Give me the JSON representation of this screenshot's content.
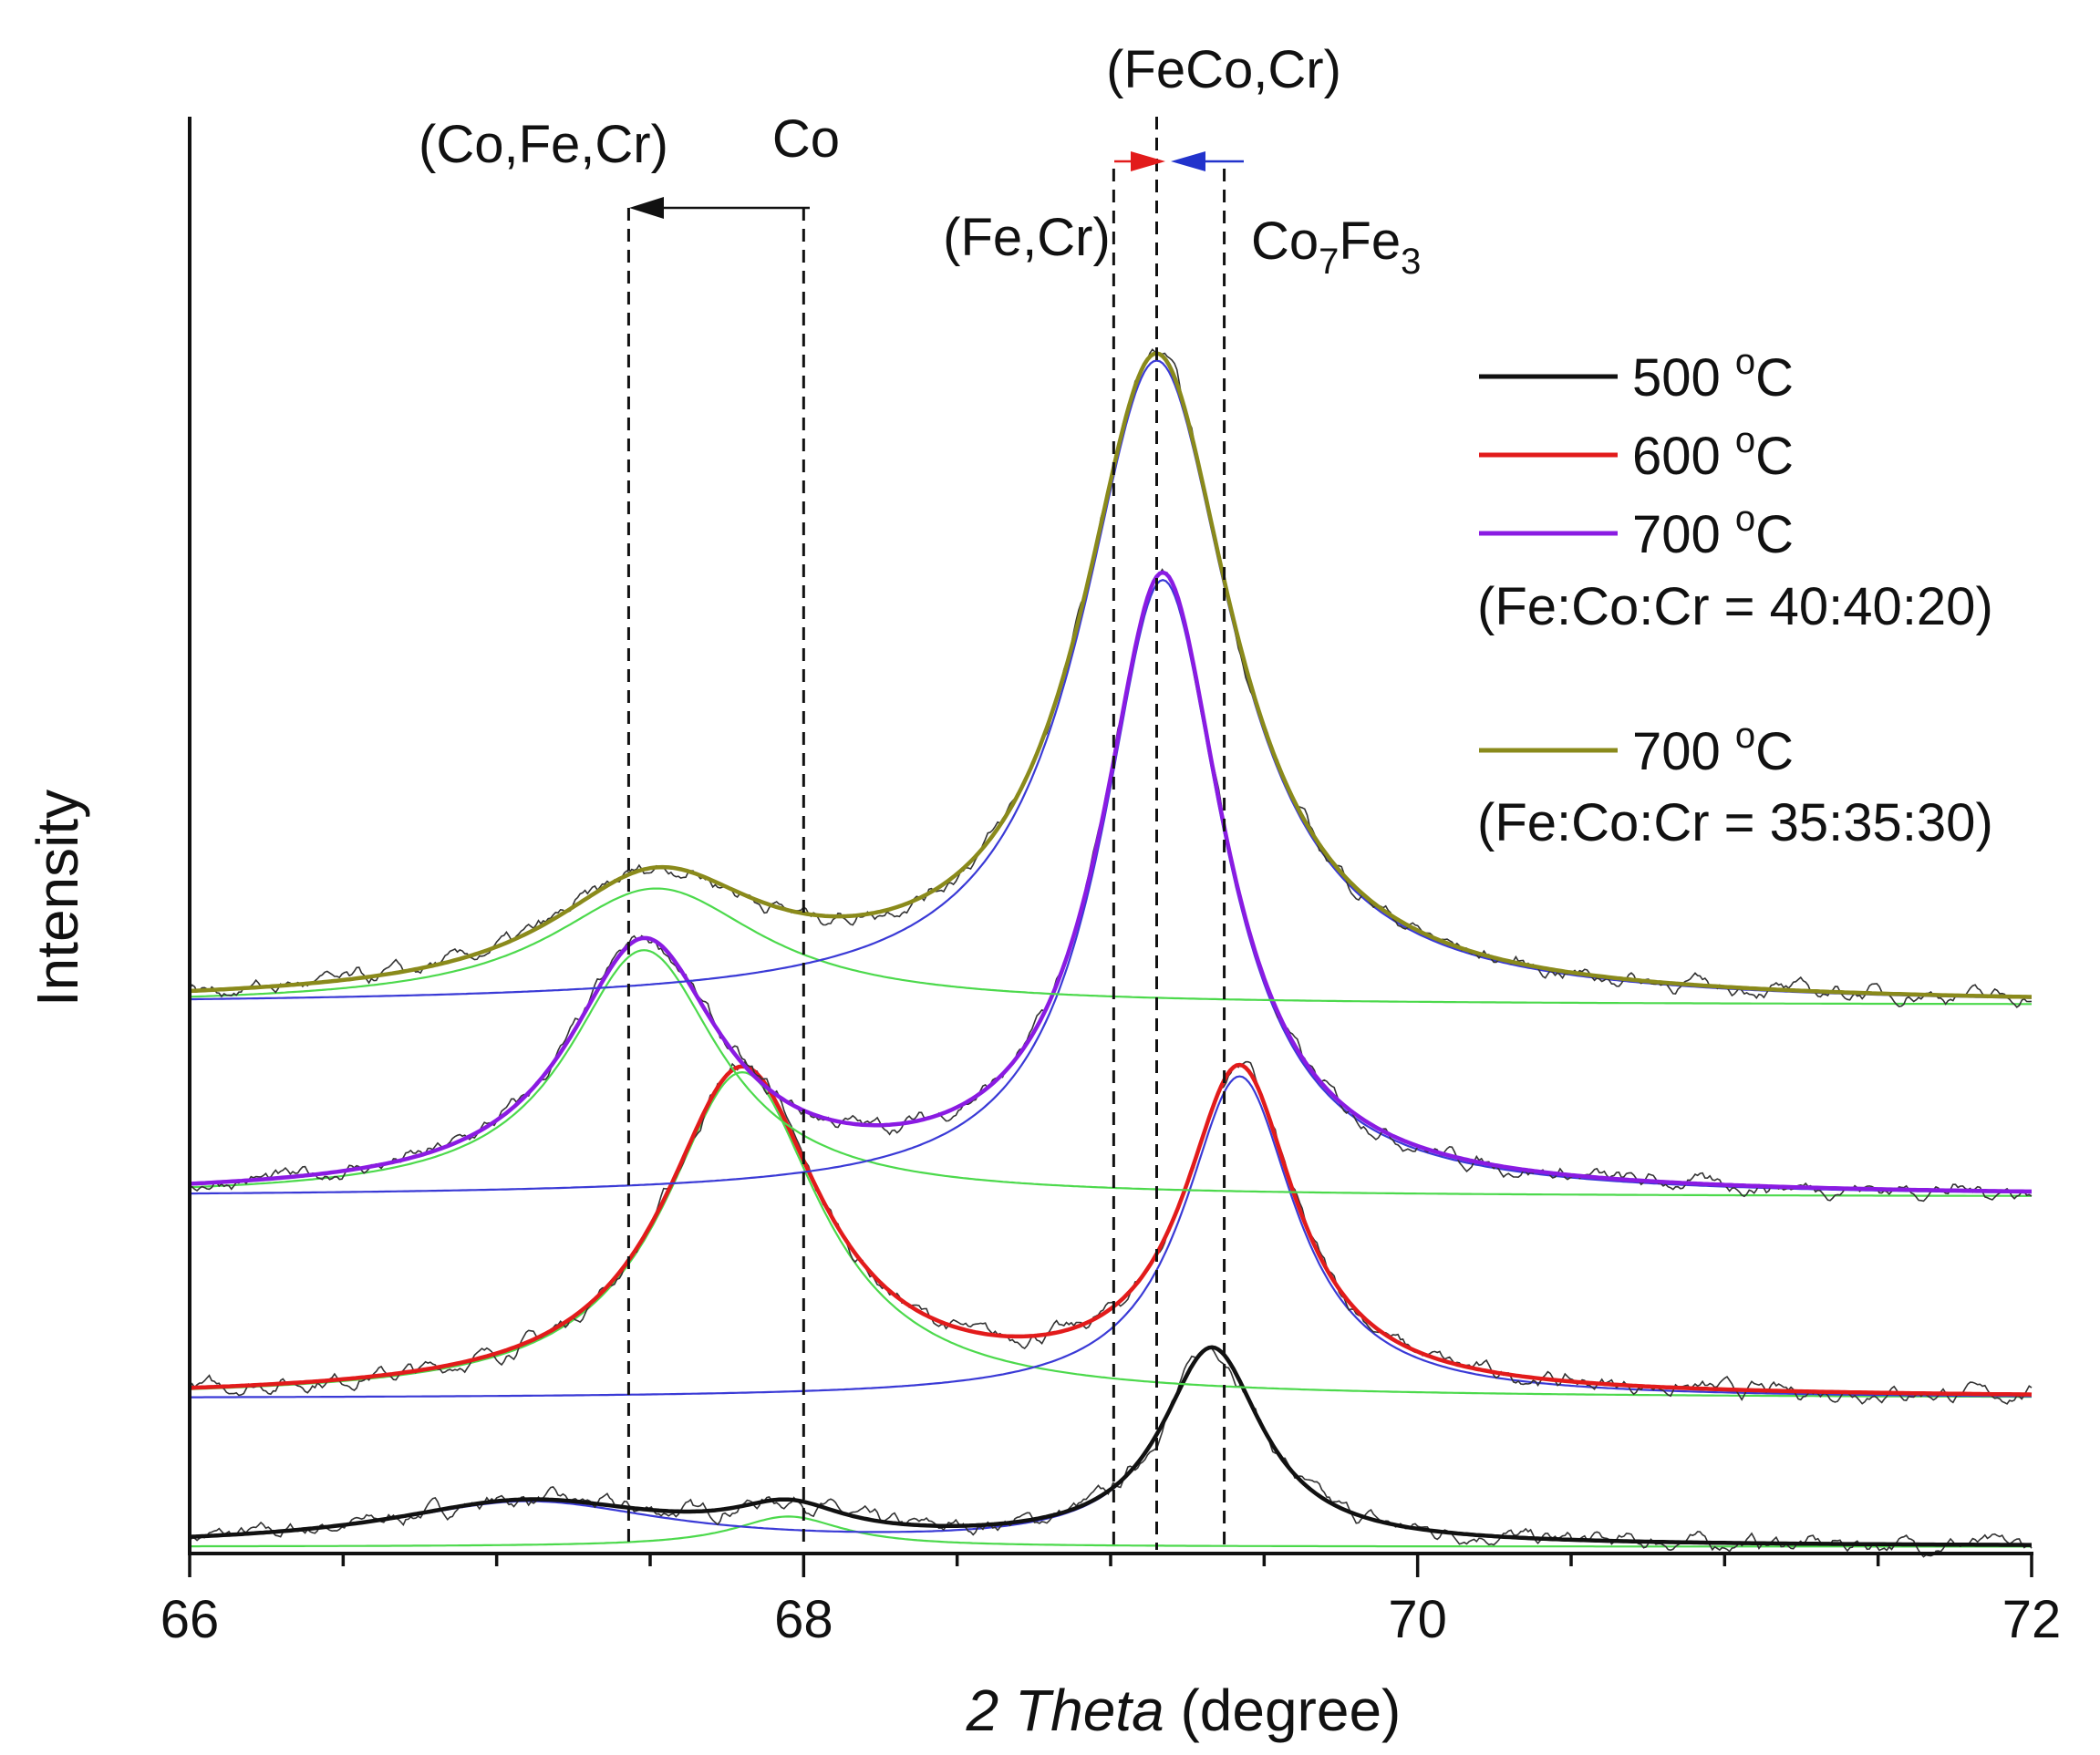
{
  "chart_data": {
    "type": "line",
    "title": "",
    "xlabel_italic": "2 Theta",
    "xlabel_rest": " (degree)",
    "ylabel": "Intensity",
    "xlim": [
      66,
      72
    ],
    "ylim": [
      0,
      1
    ],
    "x_ticks": [
      66,
      68,
      70,
      72
    ],
    "x_tick_labels": [
      "66",
      "68",
      "70",
      "72"
    ],
    "grid": false,
    "legend_position": "right",
    "series": [
      {
        "name": "500 °C",
        "label_num": "500",
        "color": "#111111",
        "baseline": 0.005,
        "peaks": [
          {
            "center": 67.1,
            "height": 0.032,
            "width": 0.55
          },
          {
            "center": 67.95,
            "height": 0.022,
            "width": 0.22
          },
          {
            "center": 69.33,
            "height": 0.143,
            "width": 0.2
          }
        ],
        "components": [
          {
            "color": "#4cd94c",
            "peaks": [
              {
                "center": 67.95,
                "height": 0.022,
                "width": 0.22
              }
            ]
          },
          {
            "color": "#3a3ad6",
            "peaks": [
              {
                "center": 67.1,
                "height": 0.032,
                "width": 0.55
              },
              {
                "center": 69.33,
                "height": 0.143,
                "width": 0.2
              }
            ]
          }
        ]
      },
      {
        "name": "600 °C",
        "label_num": "600",
        "color": "#e21b1b",
        "baseline": 0.113,
        "peaks": [
          {
            "center": 67.8,
            "height": 0.238,
            "width": 0.31
          },
          {
            "center": 69.42,
            "height": 0.235,
            "width": 0.22
          }
        ],
        "components": [
          {
            "color": "#4cd94c",
            "peaks": [
              {
                "center": 67.8,
                "height": 0.238,
                "width": 0.31
              }
            ]
          },
          {
            "color": "#3a3ad6",
            "peaks": [
              {
                "center": 69.42,
                "height": 0.235,
                "width": 0.22
              }
            ]
          }
        ]
      },
      {
        "name": "700 °C",
        "label_num": "700",
        "color": "#8a1be2",
        "baseline": 0.26,
        "peaks": [
          {
            "center": 67.48,
            "height": 0.18,
            "width": 0.3
          },
          {
            "center": 69.17,
            "height": 0.45,
            "width": 0.24
          }
        ],
        "components": [
          {
            "color": "#4cd94c",
            "peaks": [
              {
                "center": 67.48,
                "height": 0.18,
                "width": 0.3
              }
            ]
          },
          {
            "color": "#3a3ad6",
            "peaks": [
              {
                "center": 69.17,
                "height": 0.45,
                "width": 0.24
              }
            ]
          }
        ],
        "composition": "(Fe:Co:Cr = 40:40:20)"
      },
      {
        "name": "700 °C",
        "label_num": "700",
        "color": "#8a8a1b",
        "baseline": 0.4,
        "peaks": [
          {
            "center": 67.52,
            "height": 0.085,
            "width": 0.42
          },
          {
            "center": 69.15,
            "height": 0.47,
            "width": 0.3
          }
        ],
        "components": [
          {
            "color": "#4cd94c",
            "peaks": [
              {
                "center": 67.52,
                "height": 0.085,
                "width": 0.42
              }
            ]
          },
          {
            "color": "#3a3ad6",
            "peaks": [
              {
                "center": 69.15,
                "height": 0.47,
                "width": 0.3
              }
            ]
          }
        ],
        "composition": "(Fe:Co:Cr = 35:35:30)"
      }
    ],
    "reference_lines": [
      {
        "x": 67.43,
        "label": "(Co,Fe,Cr)"
      },
      {
        "x": 68.0,
        "label": "Co"
      },
      {
        "x": 69.01,
        "label": "(Fe,Cr)"
      },
      {
        "x": 69.15,
        "label": "(FeCo,Cr)"
      },
      {
        "x": 69.37,
        "label_main": "Co",
        "sub1": "7",
        "label_mid": "Fe",
        "sub2": "3"
      }
    ],
    "legend_unit": "°C",
    "legend_unit_sup": "o",
    "legend_unit_letter": "C"
  }
}
